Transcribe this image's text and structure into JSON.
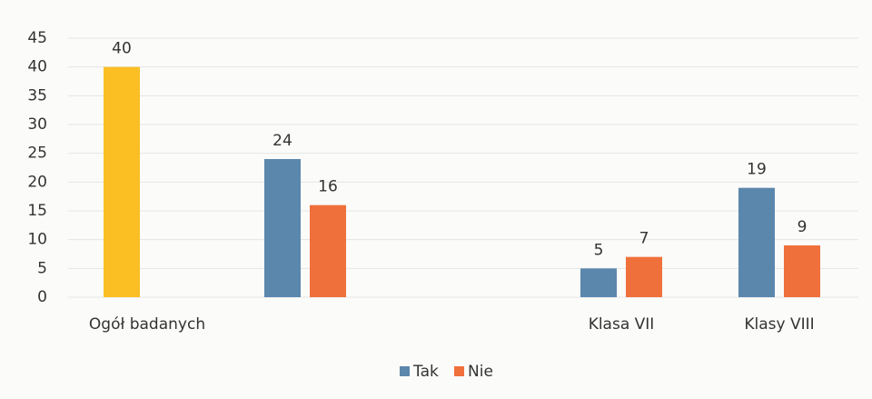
{
  "chart_data": {
    "type": "bar",
    "categories": [
      "Ogół badanych",
      null,
      null,
      "Klasa VII",
      "Klasy VIII"
    ],
    "series": [
      {
        "color": "#fbbf24",
        "values": [
          40,
          null,
          null,
          null,
          null
        ]
      },
      {
        "name": "Tak",
        "color": "#5b87ad",
        "values": [
          null,
          24,
          null,
          5,
          19
        ]
      },
      {
        "name": "Nie",
        "color": "#f0703c",
        "values": [
          null,
          16,
          null,
          7,
          9
        ]
      }
    ],
    "ylim": [
      0,
      45
    ],
    "yticks": [
      0,
      5,
      10,
      15,
      20,
      25,
      30,
      35,
      40,
      45
    ],
    "grid": true,
    "legend": "bottom"
  }
}
